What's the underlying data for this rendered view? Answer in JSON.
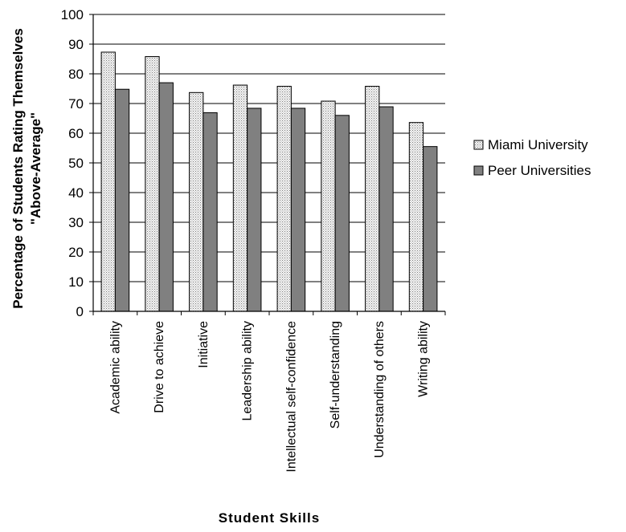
{
  "chart_data": {
    "type": "bar",
    "xlabel": "Student Skills",
    "ylabel_lines": [
      "Percentage of Students Rating Themselves",
      "\"Above-Average\""
    ],
    "ylim": [
      0,
      100
    ],
    "yticks": [
      0,
      10,
      20,
      30,
      40,
      50,
      60,
      70,
      80,
      90,
      100
    ],
    "grid": true,
    "legend_position": "right",
    "categories": [
      "Academic ability",
      "Drive to achieve",
      "Initiative",
      "Leadership ability",
      "Intellectual self-confidence",
      "Self-understanding",
      "Understanding of others",
      "Writing ability"
    ],
    "series": [
      {
        "name": "Miami University",
        "values": [
          87.3,
          85.8,
          73.7,
          76.2,
          75.8,
          70.8,
          75.8,
          63.6
        ],
        "color": "#d9d9d9",
        "pattern": "dotted"
      },
      {
        "name": "Peer Universities",
        "values": [
          74.8,
          77.0,
          66.9,
          68.4,
          68.4,
          66.0,
          68.9,
          55.5
        ],
        "color": "#808080",
        "pattern": "solid"
      }
    ]
  }
}
